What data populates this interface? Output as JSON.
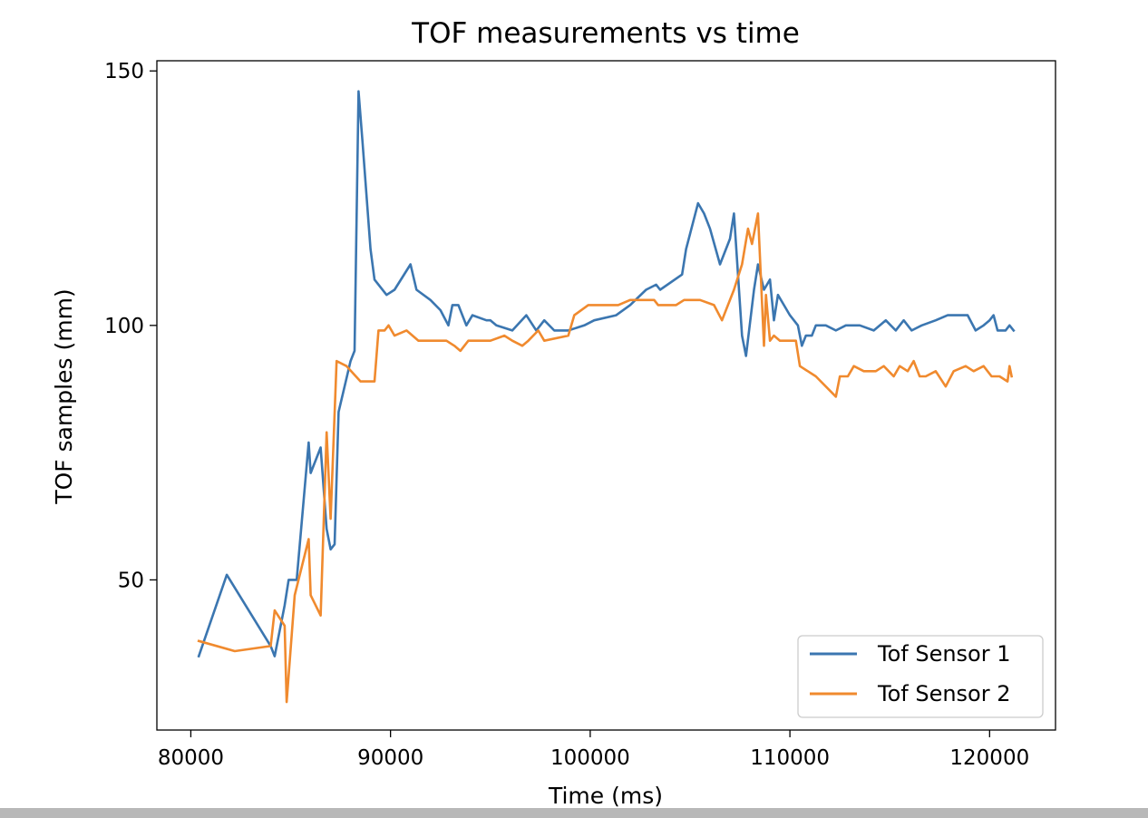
{
  "chart_data": {
    "type": "line",
    "title": "TOF measurements vs time",
    "xlabel": "Time (ms)",
    "ylabel": "TOF samples (mm)",
    "xlim": [
      78300,
      123300
    ],
    "ylim": [
      20.5,
      152
    ],
    "xticks": [
      80000,
      90000,
      100000,
      110000,
      120000
    ],
    "yticks": [
      50,
      100,
      150
    ],
    "grid": false,
    "legend": "lower-right",
    "series": [
      {
        "name": "Tof Sensor 1",
        "color": "#3b76b0",
        "points": [
          [
            80400,
            35
          ],
          [
            81800,
            51
          ],
          [
            84000,
            37
          ],
          [
            84200,
            35
          ],
          [
            84700,
            45
          ],
          [
            84900,
            50
          ],
          [
            85300,
            50
          ],
          [
            85900,
            77
          ],
          [
            86000,
            71
          ],
          [
            86500,
            76
          ],
          [
            86800,
            60
          ],
          [
            87000,
            56
          ],
          [
            87200,
            57
          ],
          [
            87400,
            83
          ],
          [
            88000,
            93
          ],
          [
            88200,
            95
          ],
          [
            88400,
            146
          ],
          [
            88600,
            136
          ],
          [
            89000,
            115
          ],
          [
            89200,
            109
          ],
          [
            89800,
            106
          ],
          [
            90200,
            107
          ],
          [
            91000,
            112
          ],
          [
            91300,
            107
          ],
          [
            92000,
            105
          ],
          [
            92500,
            103
          ],
          [
            92900,
            100
          ],
          [
            93100,
            104
          ],
          [
            93400,
            104
          ],
          [
            93800,
            100
          ],
          [
            94100,
            102
          ],
          [
            94800,
            101
          ],
          [
            95000,
            101
          ],
          [
            95300,
            100
          ],
          [
            96100,
            99
          ],
          [
            96800,
            102
          ],
          [
            97300,
            99
          ],
          [
            97700,
            101
          ],
          [
            98200,
            99
          ],
          [
            98900,
            99
          ],
          [
            99700,
            100
          ],
          [
            100200,
            101
          ],
          [
            101300,
            102
          ],
          [
            102000,
            104
          ],
          [
            102800,
            107
          ],
          [
            103300,
            108
          ],
          [
            103500,
            107
          ],
          [
            104600,
            110
          ],
          [
            104800,
            115
          ],
          [
            105400,
            124
          ],
          [
            105700,
            122
          ],
          [
            106000,
            119
          ],
          [
            106500,
            112
          ],
          [
            107000,
            117
          ],
          [
            107200,
            122
          ],
          [
            107600,
            98
          ],
          [
            107800,
            94
          ],
          [
            108200,
            107
          ],
          [
            108400,
            112
          ],
          [
            108700,
            107
          ],
          [
            109000,
            109
          ],
          [
            109200,
            101
          ],
          [
            109400,
            106
          ],
          [
            109700,
            104
          ],
          [
            110000,
            102
          ],
          [
            110400,
            100
          ],
          [
            110600,
            96
          ],
          [
            110800,
            98
          ],
          [
            111100,
            98
          ],
          [
            111300,
            100
          ],
          [
            111800,
            100
          ],
          [
            112300,
            99
          ],
          [
            112800,
            100
          ],
          [
            113500,
            100
          ],
          [
            114200,
            99
          ],
          [
            114800,
            101
          ],
          [
            115300,
            99
          ],
          [
            115700,
            101
          ],
          [
            116100,
            99
          ],
          [
            116600,
            100
          ],
          [
            117300,
            101
          ],
          [
            117900,
            102
          ],
          [
            118900,
            102
          ],
          [
            119300,
            99
          ],
          [
            119700,
            100
          ],
          [
            120000,
            101
          ],
          [
            120200,
            102
          ],
          [
            120400,
            99
          ],
          [
            120800,
            99
          ],
          [
            121000,
            100
          ],
          [
            121200,
            99
          ]
        ]
      },
      {
        "name": "Tof Sensor 2",
        "color": "#f08a2e",
        "points": [
          [
            80400,
            38
          ],
          [
            82200,
            36
          ],
          [
            84000,
            37
          ],
          [
            84200,
            44
          ],
          [
            84700,
            41
          ],
          [
            84800,
            26
          ],
          [
            85200,
            47
          ],
          [
            85900,
            58
          ],
          [
            86000,
            47
          ],
          [
            86500,
            43
          ],
          [
            86800,
            79
          ],
          [
            87000,
            62
          ],
          [
            87300,
            93
          ],
          [
            87800,
            92
          ],
          [
            88500,
            89
          ],
          [
            89200,
            89
          ],
          [
            89400,
            99
          ],
          [
            89700,
            99
          ],
          [
            89900,
            100
          ],
          [
            90200,
            98
          ],
          [
            90800,
            99
          ],
          [
            91400,
            97
          ],
          [
            91800,
            97
          ],
          [
            92800,
            97
          ],
          [
            93200,
            96
          ],
          [
            93500,
            95
          ],
          [
            93900,
            97
          ],
          [
            94600,
            97
          ],
          [
            95000,
            97
          ],
          [
            95700,
            98
          ],
          [
            96100,
            97
          ],
          [
            96600,
            96
          ],
          [
            96900,
            97
          ],
          [
            97400,
            99
          ],
          [
            97700,
            97
          ],
          [
            98900,
            98
          ],
          [
            99200,
            102
          ],
          [
            99900,
            104
          ],
          [
            100400,
            104
          ],
          [
            101400,
            104
          ],
          [
            102000,
            105
          ],
          [
            103200,
            105
          ],
          [
            103400,
            104
          ],
          [
            104300,
            104
          ],
          [
            104700,
            105
          ],
          [
            105500,
            105
          ],
          [
            106200,
            104
          ],
          [
            106600,
            101
          ],
          [
            107200,
            107
          ],
          [
            107600,
            112
          ],
          [
            107900,
            119
          ],
          [
            108100,
            116
          ],
          [
            108400,
            122
          ],
          [
            108700,
            96
          ],
          [
            108800,
            106
          ],
          [
            109000,
            97
          ],
          [
            109200,
            98
          ],
          [
            109500,
            97
          ],
          [
            110300,
            97
          ],
          [
            110500,
            92
          ],
          [
            111300,
            90
          ],
          [
            112300,
            86
          ],
          [
            112500,
            90
          ],
          [
            112900,
            90
          ],
          [
            113200,
            92
          ],
          [
            113700,
            91
          ],
          [
            114300,
            91
          ],
          [
            114700,
            92
          ],
          [
            115200,
            90
          ],
          [
            115500,
            92
          ],
          [
            115900,
            91
          ],
          [
            116200,
            93
          ],
          [
            116500,
            90
          ],
          [
            116800,
            90
          ],
          [
            117300,
            91
          ],
          [
            117800,
            88
          ],
          [
            118200,
            91
          ],
          [
            118800,
            92
          ],
          [
            119200,
            91
          ],
          [
            119700,
            92
          ],
          [
            120100,
            90
          ],
          [
            120500,
            90
          ],
          [
            120900,
            89
          ],
          [
            121000,
            92
          ],
          [
            121100,
            90
          ]
        ]
      }
    ]
  }
}
